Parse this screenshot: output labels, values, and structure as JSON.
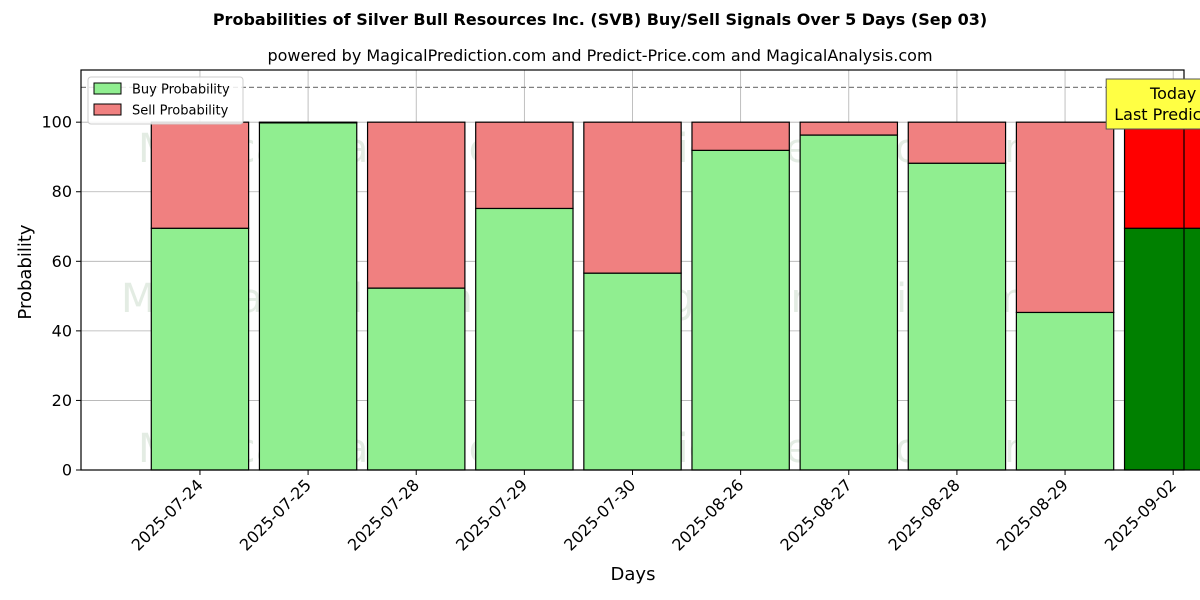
{
  "chart_data": {
    "type": "bar",
    "title": "Probabilities of Silver Bull Resources Inc. (SVB) Buy/Sell Signals Over 5 Days (Sep 03)",
    "subtitle": "powered by MagicalPrediction.com and Predict-Price.com and MagicalAnalysis.com",
    "xlabel": "Days",
    "ylabel": "Probability",
    "ylim": [
      0,
      115
    ],
    "yticks": [
      0,
      20,
      40,
      60,
      80,
      100
    ],
    "grid": true,
    "stacked": true,
    "categories": [
      "2025-07-24",
      "2025-07-25",
      "2025-07-28",
      "2025-07-29",
      "2025-07-30",
      "2025-08-26",
      "2025-08-27",
      "2025-08-28",
      "2025-08-29",
      "2025-09-02"
    ],
    "series": [
      {
        "name": "Buy Probability",
        "color": "#90ee90",
        "highlight_color": "#008000",
        "values": [
          69.5,
          99.8,
          52.3,
          75.2,
          56.6,
          91.9,
          96.3,
          88.2,
          45.3,
          69.5
        ]
      },
      {
        "name": "Sell Probability",
        "color": "#f08080",
        "highlight_color": "#ff0000",
        "values": [
          30.5,
          0.2,
          47.7,
          24.8,
          43.4,
          8.1,
          3.7,
          11.8,
          54.7,
          30.5
        ]
      }
    ],
    "highlight_index": 9,
    "reference_line": {
      "y": 110,
      "style": "dashed",
      "color": "#808080"
    },
    "legend": {
      "placement": "top-left"
    },
    "annotation": {
      "lines": [
        "Today",
        "Last Prediction"
      ],
      "bg": "#ffff44",
      "placement": "top-right"
    },
    "watermarks": [
      "MagicalAnalysis.com",
      "MagicalPrediction.com"
    ]
  }
}
